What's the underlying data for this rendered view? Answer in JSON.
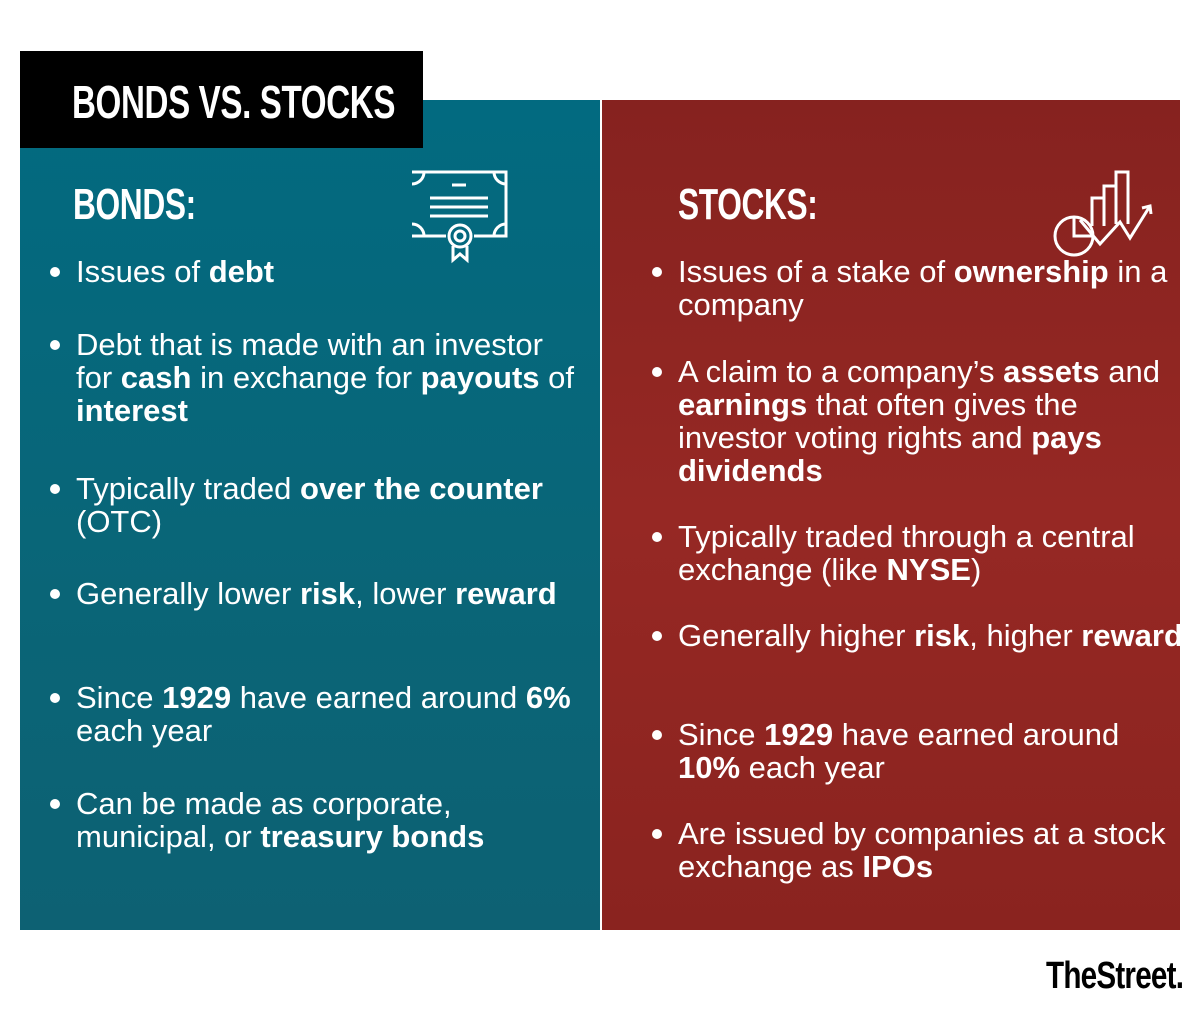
{
  "title": "BONDS VS. STOCKS",
  "colors": {
    "bonds": "#026a80",
    "stocks": "#8b2420",
    "title_bg": "#000000"
  },
  "bonds": {
    "heading": "BONDS:",
    "icon": "certificate-icon",
    "items": [
      [
        {
          "t": "Issues of "
        },
        {
          "t": "debt",
          "b": true
        }
      ],
      [
        {
          "t": "Debt that is made with an investor for "
        },
        {
          "t": "cash",
          "b": true
        },
        {
          "t": " in exchange for "
        },
        {
          "t": "payouts",
          "b": true
        },
        {
          "t": " of "
        },
        {
          "t": "interest",
          "b": true
        }
      ],
      [
        {
          "t": "Typically traded "
        },
        {
          "t": "over the counter",
          "b": true
        },
        {
          "t": " (OTC)"
        }
      ],
      [
        {
          "t": "Generally lower "
        },
        {
          "t": "risk",
          "b": true
        },
        {
          "t": ", lower "
        },
        {
          "t": "reward",
          "b": true
        }
      ],
      [
        {
          "t": "Since "
        },
        {
          "t": "1929",
          "b": true
        },
        {
          "t": " have earned around "
        },
        {
          "t": "6%",
          "b": true
        },
        {
          "t": " each year"
        }
      ],
      [
        {
          "t": "Can be made as corporate, municipal, or "
        },
        {
          "t": "treasury bonds",
          "b": true
        }
      ]
    ]
  },
  "stocks": {
    "heading": "STOCKS:",
    "icon": "chart-growth-icon",
    "items": [
      [
        {
          "t": "Issues of a stake of "
        },
        {
          "t": "ownership",
          "b": true
        },
        {
          "t": " in a company"
        }
      ],
      [
        {
          "t": "A claim to a company’s "
        },
        {
          "t": "assets",
          "b": true
        },
        {
          "t": " and "
        },
        {
          "t": "earnings",
          "b": true
        },
        {
          "t": " that often gives the investor voting rights and "
        },
        {
          "t": "pays dividends",
          "b": true
        }
      ],
      [
        {
          "t": "Typically traded through a central exchange (like "
        },
        {
          "t": "NYSE",
          "b": true
        },
        {
          "t": ")"
        }
      ],
      [
        {
          "t": "Generally higher "
        },
        {
          "t": "risk",
          "b": true
        },
        {
          "t": ", higher "
        },
        {
          "t": "reward",
          "b": true
        }
      ],
      [
        {
          "t": "Since "
        },
        {
          "t": "1929",
          "b": true
        },
        {
          "t": " have earned around "
        },
        {
          "t": "10%",
          "b": true
        },
        {
          "t": " each year"
        }
      ],
      [
        {
          "t": "Are issued by companies at a stock exchange as "
        },
        {
          "t": "IPOs",
          "b": true
        }
      ]
    ]
  },
  "logo": "TheStreet."
}
